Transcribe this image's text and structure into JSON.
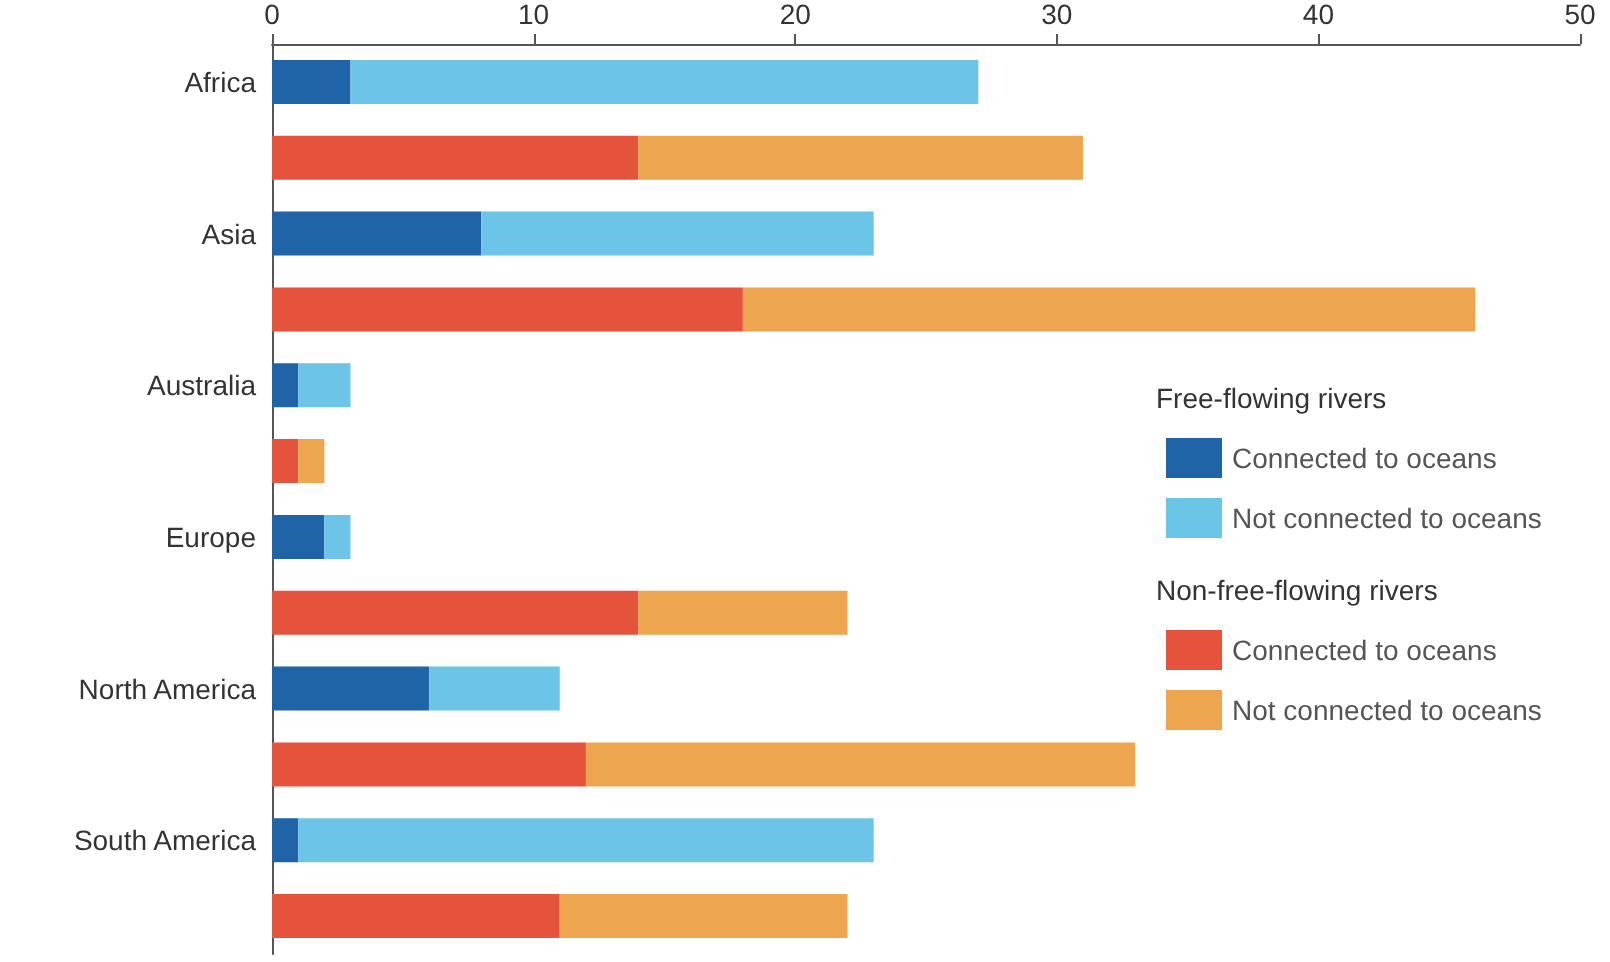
{
  "chart_data": {
    "type": "bar",
    "orientation": "horizontal",
    "stacked": true,
    "categories": [
      "Africa",
      null,
      "Asia",
      null,
      "Australia",
      null,
      "Europe",
      null,
      "North America",
      null,
      "South America",
      null
    ],
    "series": [
      {
        "name": "Connected to oceans",
        "color": "#1f64a6",
        "values": [
          3,
          null,
          8,
          null,
          1,
          null,
          2,
          null,
          6,
          null,
          1,
          null
        ]
      },
      {
        "name": "Not connected to oceans",
        "color": "#6cc4e6",
        "values": [
          24,
          null,
          15,
          null,
          2,
          null,
          1,
          null,
          5,
          null,
          22,
          null
        ]
      },
      {
        "name": "Connected to oceans",
        "color": "#e5533c",
        "values": [
          null,
          14,
          null,
          18,
          null,
          1,
          null,
          14,
          null,
          12,
          null,
          11
        ]
      },
      {
        "name": "Not connected to oceans",
        "color": "#eea54f",
        "values": [
          null,
          17,
          null,
          28,
          null,
          1,
          null,
          8,
          null,
          21,
          null,
          11
        ]
      }
    ],
    "annotations": [
      "Free-flowing rivers",
      "Non-free-flowing rivers"
    ],
    "xlim": [
      0,
      50
    ],
    "xticks": [
      0,
      10,
      20,
      30,
      40,
      50
    ],
    "grid": false,
    "legend": "right"
  }
}
